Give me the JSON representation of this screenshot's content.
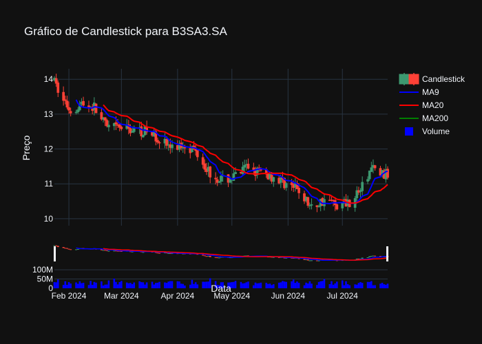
{
  "chart_data": {
    "type": "candlestick",
    "title": "Gráfico de Candlestick para B3SA3.SA",
    "xlabel": "Data",
    "ylabel": "Preço",
    "ylim": [
      9.8,
      14.3
    ],
    "yticks": [
      10,
      11,
      12,
      13,
      14
    ],
    "xticks": [
      {
        "date": "2024-02-01",
        "label": "Feb 2024"
      },
      {
        "date": "2024-03-01",
        "label": "Mar 2024"
      },
      {
        "date": "2024-04-01",
        "label": "Apr 2024"
      },
      {
        "date": "2024-05-01",
        "label": "May 2024"
      },
      {
        "date": "2024-06-01",
        "label": "Jun 2024"
      },
      {
        "date": "2024-07-01",
        "label": "Jul 2024"
      }
    ],
    "x_range": [
      "2024-01-24",
      "2024-07-26"
    ],
    "volume_axis": {
      "ylim": [
        0,
        130000000
      ],
      "ticks": [
        {
          "value": 0,
          "label": "0"
        },
        {
          "value": 50000000,
          "label": "50M"
        },
        {
          "value": 100000000,
          "label": "100M"
        }
      ]
    },
    "legend_placement": "top-right",
    "legend": [
      {
        "name": "Candlestick",
        "kind": "candle"
      },
      {
        "name": "MA9",
        "kind": "line",
        "color": "#0000ff"
      },
      {
        "name": "MA20",
        "kind": "line",
        "color": "#ff0000"
      },
      {
        "name": "MA200",
        "kind": "line",
        "color": "#008000"
      },
      {
        "name": "Volume",
        "kind": "square",
        "color": "#0000ff"
      }
    ],
    "colors": {
      "up": "#3d9970",
      "down": "#ff4136",
      "ma9": "#0000ff",
      "ma20": "#ff0000",
      "volume": "#0000ff"
    },
    "price_anchors": [
      [
        "2024-01-24",
        13.9
      ],
      [
        "2024-01-29",
        13.4
      ],
      [
        "2024-02-02",
        13.1
      ],
      [
        "2024-02-08",
        13.3
      ],
      [
        "2024-02-15",
        13.2
      ],
      [
        "2024-02-22",
        12.6
      ],
      [
        "2024-03-01",
        12.6
      ],
      [
        "2024-03-08",
        12.55
      ],
      [
        "2024-03-15",
        12.5
      ],
      [
        "2024-03-22",
        12.3
      ],
      [
        "2024-03-29",
        12.0
      ],
      [
        "2024-04-05",
        12.15
      ],
      [
        "2024-04-12",
        11.9
      ],
      [
        "2024-04-19",
        11.3
      ],
      [
        "2024-04-26",
        11.1
      ],
      [
        "2024-05-03",
        11.2
      ],
      [
        "2024-05-10",
        11.5
      ],
      [
        "2024-05-17",
        11.3
      ],
      [
        "2024-05-24",
        11.2
      ],
      [
        "2024-05-31",
        11.0
      ],
      [
        "2024-06-07",
        10.8
      ],
      [
        "2024-06-14",
        10.3
      ],
      [
        "2024-06-21",
        10.55
      ],
      [
        "2024-06-28",
        10.4
      ],
      [
        "2024-07-05",
        10.5
      ],
      [
        "2024-07-12",
        10.9
      ],
      [
        "2024-07-17",
        11.45
      ],
      [
        "2024-07-22",
        11.3
      ],
      [
        "2024-07-26",
        11.25
      ]
    ]
  }
}
